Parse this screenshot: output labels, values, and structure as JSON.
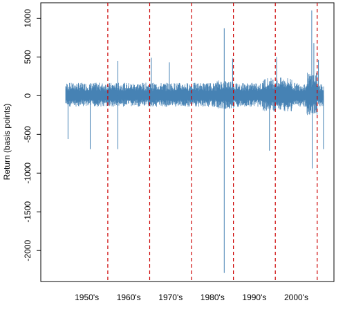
{
  "chart_data": {
    "type": "line",
    "title": "",
    "xlabel": "",
    "ylabel": "Return (basis points)",
    "ylim": [
      -2400,
      1200
    ],
    "xlim": [
      1944,
      2014
    ],
    "y_ticks": [
      1000,
      500,
      0,
      -500,
      -1000,
      -1500,
      -2000
    ],
    "y_tick_labels": [
      "1000",
      "500",
      "0",
      "-500",
      "-1000",
      "-1500",
      "-2000"
    ],
    "x_tick_labels": [
      "1950's",
      "1960's",
      "1970's",
      "1980's",
      "1990's",
      "2000's"
    ],
    "x_tick_positions": [
      1955,
      1965,
      1975,
      1985,
      1995,
      2005
    ],
    "vlines": [
      1960,
      1970,
      1980,
      1990,
      2000,
      2010
    ],
    "vline_style": "dashed",
    "grid": false,
    "legend": "none",
    "series": [
      {
        "color": "#4682b4",
        "x_start": 1950,
        "x_end": 2011.5,
        "typical_range": [
          -120,
          140
        ],
        "spikes": [
          {
            "x": 1950.5,
            "y": 0,
            "low": -560
          },
          {
            "x": 1955.8,
            "y": 0,
            "low": -690
          },
          {
            "x": 1962.4,
            "y": 0,
            "low": -690
          },
          {
            "x": 1962.4,
            "y": 0,
            "high": 450
          },
          {
            "x": 1970.4,
            "y": 0,
            "high": 490
          },
          {
            "x": 1974.7,
            "y": 0,
            "high": 430
          },
          {
            "x": 1987.8,
            "y": 0,
            "low": -2290
          },
          {
            "x": 1987.8,
            "y": 0,
            "high": 870
          },
          {
            "x": 1989.8,
            "y": 0,
            "high": 480
          },
          {
            "x": 1998.6,
            "y": 0,
            "low": -710
          },
          {
            "x": 2000.3,
            "y": 0,
            "high": 500
          },
          {
            "x": 2008.7,
            "y": 0,
            "high": 1100
          },
          {
            "x": 2008.8,
            "y": 0,
            "low": -940
          },
          {
            "x": 2009.2,
            "y": 0,
            "high": 680
          },
          {
            "x": 2010.3,
            "y": 0,
            "high": 460
          },
          {
            "x": 2011.5,
            "y": 0,
            "low": -690
          }
        ]
      }
    ]
  },
  "colors": {
    "series": "#4682b4",
    "vline": "#cc0000",
    "axis": "#000000"
  }
}
